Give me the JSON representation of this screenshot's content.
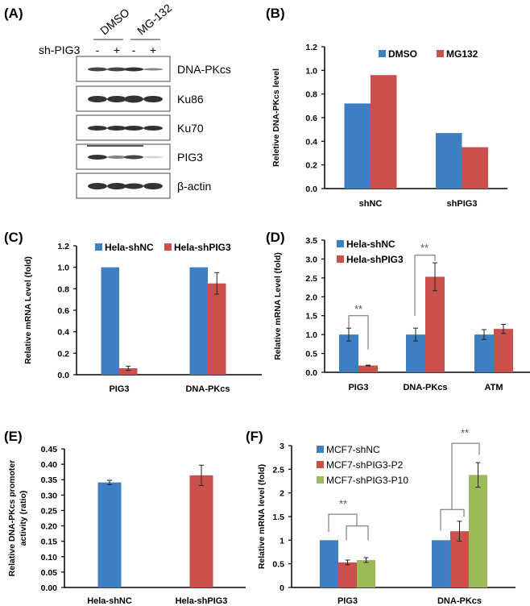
{
  "colors": {
    "blue": "#3d7fc1",
    "red": "#c9504b",
    "green": "#9bbb59",
    "axis": "#000000"
  },
  "panel_labels": [
    "(A)",
    "(B)",
    "(C)",
    "(D)",
    "(E)",
    "(F)"
  ],
  "blot": {
    "treatments": [
      "DMSO",
      "MG-132"
    ],
    "row_label": "sh-PIG3",
    "lane_signs": [
      "-",
      "+",
      "-",
      "+"
    ],
    "proteins": [
      "DNA-PKcs",
      "Ku86",
      "Ku70",
      "PIG3",
      "β-actin"
    ]
  },
  "chart_data": [
    {
      "type": "bar",
      "panel": "(B)",
      "ylabel": "Reletive DNA-PKcs level",
      "categories": [
        "shNC",
        "shPIG3"
      ],
      "ylim": [
        0,
        1.2
      ],
      "yticks": [
        "0.0",
        "0.2",
        "0.4",
        "0.6",
        "0.8",
        "1.0",
        "1.2"
      ],
      "legend": "top-center",
      "series": [
        {
          "name": "DMSO",
          "color": "#3d7fc1",
          "values": [
            0.72,
            0.47
          ]
        },
        {
          "name": "MG132",
          "color": "#c9504b",
          "values": [
            0.96,
            0.35
          ]
        }
      ]
    },
    {
      "type": "bar",
      "panel": "(C)",
      "ylabel": "Relative mRNA Level (fold)",
      "categories": [
        "PIG3",
        "DNA-PKcs"
      ],
      "ylim": [
        0,
        1.2
      ],
      "yticks": [
        "0.0",
        "0.2",
        "0.4",
        "0.6",
        "0.8",
        "1.0",
        "1.2"
      ],
      "legend": "top",
      "series": [
        {
          "name": "Hela-shNC",
          "color": "#3d7fc1",
          "values": [
            1.0,
            1.0
          ],
          "errors": [
            0,
            0
          ]
        },
        {
          "name": "Hela-shPIG3",
          "color": "#c9504b",
          "values": [
            0.06,
            0.85
          ],
          "errors": [
            0.02,
            0.1
          ]
        }
      ]
    },
    {
      "type": "bar",
      "panel": "(D)",
      "ylabel": "Relative mRNA Level (fold)",
      "categories": [
        "PIG3",
        "DNA-PKcs",
        "ATM"
      ],
      "ylim": [
        0,
        3.5
      ],
      "yticks": [
        "0.0",
        "0.5",
        "1.0",
        "1.5",
        "2.0",
        "2.5",
        "3.0",
        "3.5"
      ],
      "legend": "top-left",
      "significance": [
        "**",
        "**"
      ],
      "series": [
        {
          "name": "Hela-shNC",
          "color": "#3d7fc1",
          "values": [
            1.0,
            1.0,
            1.0
          ],
          "errors": [
            0.17,
            0.17,
            0.13
          ]
        },
        {
          "name": "Hela-shPIG3",
          "color": "#c9504b",
          "values": [
            0.18,
            2.53,
            1.15
          ],
          "errors": [
            0.01,
            0.37,
            0.12
          ]
        }
      ]
    },
    {
      "type": "bar",
      "panel": "(E)",
      "ylabel": [
        "Relative DNA-PKcs promoter",
        "activity (ratio)"
      ],
      "categories": [
        "Hela-shNC",
        "Hela-shPIG3"
      ],
      "ylim": [
        0,
        0.45
      ],
      "yticks": [
        "0.00",
        "0.05",
        "0.10",
        "0.15",
        "0.20",
        "0.25",
        "0.30",
        "0.35",
        "0.40",
        "0.45"
      ],
      "series": [
        {
          "colors": [
            "#3d7fc1",
            "#c9504b"
          ],
          "values": [
            0.341,
            0.364
          ],
          "errors": [
            0.007,
            0.033
          ]
        }
      ]
    },
    {
      "type": "bar",
      "panel": "(F)",
      "ylabel": "Relative mRNA level (fold)",
      "categories": [
        "PIG3",
        "DNA-PKcs"
      ],
      "ylim": [
        0,
        3
      ],
      "yticks": [
        "0",
        "0.5",
        "1",
        "1.5",
        "2",
        "2.5",
        "3"
      ],
      "legend": "top-left",
      "significance": [
        "**",
        "**"
      ],
      "series": [
        {
          "name": "MCF7-shNC",
          "color": "#3d7fc1",
          "values": [
            1.0,
            1.0
          ],
          "errors": [
            0,
            0
          ]
        },
        {
          "name": "MCF7-shPIG3-P2",
          "color": "#c9504b",
          "values": [
            0.53,
            1.19
          ],
          "errors": [
            0.05,
            0.21
          ]
        },
        {
          "name": "MCF7-shPIG3-P10",
          "color": "#9bbb59",
          "values": [
            0.58,
            2.38
          ],
          "errors": [
            0.05,
            0.26
          ]
        }
      ]
    }
  ]
}
